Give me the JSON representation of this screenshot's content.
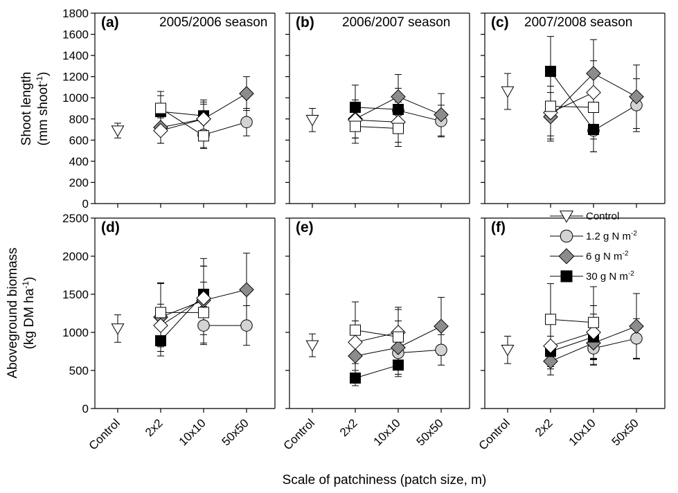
{
  "figure": {
    "xlabel": "Scale of patchiness (patch size, m)",
    "ylabel_top_line1": "Shoot length",
    "ylabel_top_line2": "(mm shoot",
    "ylabel_top_sup": "-1",
    "ylabel_bottom_line1": "Aboveground biomass",
    "ylabel_bottom_line2": "(kg DM ha",
    "ylabel_bottom_sup": "-1",
    "categories": [
      "Control",
      "2x2",
      "10x10",
      "50x50"
    ],
    "legend": [
      {
        "label": "Control",
        "sup": "",
        "marker": "triangle-down",
        "fill": "#ffffff"
      },
      {
        "label": "1.2 g N m",
        "sup": "-2",
        "marker": "circle",
        "fill": "#d3d3d3"
      },
      {
        "label": "6 g N m",
        "sup": "-2",
        "marker": "diamond",
        "fill": "#8c8c8c"
      },
      {
        "label": "30 g N m",
        "sup": "-2",
        "marker": "square",
        "fill": "#000000"
      }
    ],
    "colors": {
      "white_marker": "#ffffff",
      "light_grey": "#d3d3d3",
      "dark_grey": "#8c8c8c",
      "black": "#000000"
    }
  },
  "chart_data": [
    {
      "type": "scatter",
      "panel": "(a)",
      "title": "2005/2006 season",
      "row": "top",
      "ylim": [
        0,
        1800
      ],
      "yticks": [
        0,
        200,
        400,
        600,
        800,
        1000,
        1200,
        1400,
        1600,
        1800
      ],
      "categories": [
        "Control",
        "2x2",
        "10x10",
        "50x50"
      ],
      "series": [
        {
          "marker": "triangle-down",
          "fill": "#ffffff",
          "points": [
            {
              "x": "Control",
              "y": 690,
              "err": 70
            }
          ]
        },
        {
          "marker": "circle",
          "fill": "#d3d3d3",
          "points": [
            {
              "x": "10x10",
              "y": 650,
              "err": 120
            },
            {
              "x": "50x50",
              "y": 770,
              "err": 130
            }
          ]
        },
        {
          "marker": "diamond",
          "fill": "#8c8c8c",
          "points": [
            {
              "x": "2x2",
              "y": 720,
              "err": 150
            },
            {
              "x": "10x10",
              "y": 800,
              "err": 160
            },
            {
              "x": "50x50",
              "y": 1040,
              "err": 160
            }
          ]
        },
        {
          "marker": "square",
          "fill": "#000000",
          "points": [
            {
              "x": "2x2",
              "y": 870,
              "err": 150
            },
            {
              "x": "10x10",
              "y": 830,
              "err": 150
            }
          ]
        },
        {
          "marker": "diamond",
          "fill": "#ffffff",
          "points": [
            {
              "x": "2x2",
              "y": 690,
              "err": 120
            },
            {
              "x": "10x10",
              "y": 800,
              "err": 140
            }
          ]
        },
        {
          "marker": "square",
          "fill": "#ffffff",
          "points": [
            {
              "x": "2x2",
              "y": 900,
              "err": 160
            },
            {
              "x": "10x10",
              "y": 640,
              "err": 120
            }
          ]
        }
      ]
    },
    {
      "type": "scatter",
      "panel": "(b)",
      "title": "2006/2007 season",
      "row": "top",
      "ylim": [
        0,
        1800
      ],
      "categories": [
        "Control",
        "2x2",
        "10x10",
        "50x50"
      ],
      "series": [
        {
          "marker": "triangle-down",
          "fill": "#ffffff",
          "points": [
            {
              "x": "Control",
              "y": 790,
              "err": 110
            }
          ]
        },
        {
          "marker": "circle",
          "fill": "#d3d3d3",
          "points": [
            {
              "x": "10x10",
              "y": 880,
              "err": 150
            },
            {
              "x": "50x50",
              "y": 780,
              "err": 150
            }
          ]
        },
        {
          "marker": "diamond",
          "fill": "#8c8c8c",
          "points": [
            {
              "x": "2x2",
              "y": 800,
              "err": 180
            },
            {
              "x": "10x10",
              "y": 1010,
              "err": 210
            },
            {
              "x": "50x50",
              "y": 840,
              "err": 200
            }
          ]
        },
        {
          "marker": "square",
          "fill": "#000000",
          "points": [
            {
              "x": "2x2",
              "y": 910,
              "err": 210
            },
            {
              "x": "10x10",
              "y": 890,
              "err": 200
            }
          ]
        },
        {
          "marker": "diamond",
          "fill": "#ffffff",
          "points": [
            {
              "x": "2x2",
              "y": 790,
              "err": 170
            },
            {
              "x": "10x10",
              "y": 770,
              "err": 190
            }
          ]
        },
        {
          "marker": "square",
          "fill": "#ffffff",
          "points": [
            {
              "x": "2x2",
              "y": 730,
              "err": 160
            },
            {
              "x": "10x10",
              "y": 710,
              "err": 170
            }
          ]
        }
      ]
    },
    {
      "type": "scatter",
      "panel": "(c)",
      "title": "2007/2008 season",
      "row": "top",
      "ylim": [
        0,
        1800
      ],
      "categories": [
        "Control",
        "2x2",
        "10x10",
        "50x50"
      ],
      "series": [
        {
          "marker": "triangle-down",
          "fill": "#ffffff",
          "points": [
            {
              "x": "Control",
              "y": 1060,
              "err": 170
            }
          ]
        },
        {
          "marker": "circle",
          "fill": "#d3d3d3",
          "points": [
            {
              "x": "10x10",
              "y": 690,
              "err": 200
            },
            {
              "x": "50x50",
              "y": 930,
              "err": 250
            }
          ]
        },
        {
          "marker": "diamond",
          "fill": "#8c8c8c",
          "points": [
            {
              "x": "2x2",
              "y": 820,
              "err": 230
            },
            {
              "x": "10x10",
              "y": 1230,
              "err": 320
            },
            {
              "x": "50x50",
              "y": 1010,
              "err": 300
            }
          ]
        },
        {
          "marker": "square",
          "fill": "#000000",
          "points": [
            {
              "x": "2x2",
              "y": 1250,
              "err": 330
            },
            {
              "x": "10x10",
              "y": 700,
              "err": 210
            }
          ]
        },
        {
          "marker": "diamond",
          "fill": "#ffffff",
          "points": [
            {
              "x": "2x2",
              "y": 860,
              "err": 250
            },
            {
              "x": "10x10",
              "y": 1050,
              "err": 300
            }
          ]
        },
        {
          "marker": "square",
          "fill": "#ffffff",
          "points": [
            {
              "x": "2x2",
              "y": 920,
              "err": 280
            },
            {
              "x": "10x10",
              "y": 910,
              "err": 300
            }
          ]
        }
      ]
    },
    {
      "type": "scatter",
      "panel": "(d)",
      "title": "",
      "row": "bottom",
      "ylim": [
        0,
        2500
      ],
      "yticks": [
        0,
        500,
        1000,
        1500,
        2000,
        2500
      ],
      "categories": [
        "Control",
        "2x2",
        "10x10",
        "50x50"
      ],
      "series": [
        {
          "marker": "triangle-down",
          "fill": "#ffffff",
          "points": [
            {
              "x": "Control",
              "y": 1050,
              "err": 180
            }
          ]
        },
        {
          "marker": "circle",
          "fill": "#d3d3d3",
          "points": [
            {
              "x": "10x10",
              "y": 1090,
              "err": 250
            },
            {
              "x": "50x50",
              "y": 1090,
              "err": 260
            }
          ]
        },
        {
          "marker": "diamond",
          "fill": "#8c8c8c",
          "points": [
            {
              "x": "2x2",
              "y": 1200,
              "err": 450
            },
            {
              "x": "10x10",
              "y": 1420,
              "err": 450
            },
            {
              "x": "50x50",
              "y": 1560,
              "err": 480
            }
          ]
        },
        {
          "marker": "square",
          "fill": "#000000",
          "points": [
            {
              "x": "2x2",
              "y": 890,
              "err": 200
            },
            {
              "x": "10x10",
              "y": 1500,
              "err": 470
            }
          ]
        },
        {
          "marker": "diamond",
          "fill": "#ffffff",
          "points": [
            {
              "x": "2x2",
              "y": 1090,
              "err": 280
            },
            {
              "x": "10x10",
              "y": 1450,
              "err": 420
            }
          ]
        },
        {
          "marker": "square",
          "fill": "#ffffff",
          "points": [
            {
              "x": "2x2",
              "y": 1260,
              "err": 380
            },
            {
              "x": "10x10",
              "y": 1260,
              "err": 400
            }
          ]
        }
      ]
    },
    {
      "type": "scatter",
      "panel": "(e)",
      "title": "",
      "row": "bottom",
      "ylim": [
        0,
        2500
      ],
      "categories": [
        "Control",
        "2x2",
        "10x10",
        "50x50"
      ],
      "series": [
        {
          "marker": "triangle-down",
          "fill": "#ffffff",
          "points": [
            {
              "x": "Control",
              "y": 830,
              "err": 150
            }
          ]
        },
        {
          "marker": "circle",
          "fill": "#d3d3d3",
          "points": [
            {
              "x": "10x10",
              "y": 730,
              "err": 200
            },
            {
              "x": "50x50",
              "y": 770,
              "err": 200
            }
          ]
        },
        {
          "marker": "diamond",
          "fill": "#8c8c8c",
          "points": [
            {
              "x": "2x2",
              "y": 690,
              "err": 300
            },
            {
              "x": "10x10",
              "y": 800,
              "err": 350
            },
            {
              "x": "50x50",
              "y": 1080,
              "err": 380
            }
          ]
        },
        {
          "marker": "square",
          "fill": "#000000",
          "points": [
            {
              "x": "2x2",
              "y": 400,
              "err": 100
            },
            {
              "x": "10x10",
              "y": 570,
              "err": 150
            }
          ]
        },
        {
          "marker": "diamond",
          "fill": "#ffffff",
          "points": [
            {
              "x": "2x2",
              "y": 870,
              "err": 280
            },
            {
              "x": "10x10",
              "y": 1000,
              "err": 330
            }
          ]
        },
        {
          "marker": "square",
          "fill": "#ffffff",
          "points": [
            {
              "x": "2x2",
              "y": 1030,
              "err": 370
            },
            {
              "x": "10x10",
              "y": 940,
              "err": 360
            }
          ]
        }
      ]
    },
    {
      "type": "scatter",
      "panel": "(f)",
      "title": "",
      "row": "bottom",
      "ylim": [
        0,
        2500
      ],
      "categories": [
        "Control",
        "2x2",
        "10x10",
        "50x50"
      ],
      "series": [
        {
          "marker": "triangle-down",
          "fill": "#ffffff",
          "points": [
            {
              "x": "Control",
              "y": 770,
              "err": 180
            }
          ]
        },
        {
          "marker": "circle",
          "fill": "#d3d3d3",
          "points": [
            {
              "x": "10x10",
              "y": 790,
              "err": 220
            },
            {
              "x": "50x50",
              "y": 920,
              "err": 260
            }
          ]
        },
        {
          "marker": "diamond",
          "fill": "#8c8c8c",
          "points": [
            {
              "x": "2x2",
              "y": 620,
              "err": 180
            },
            {
              "x": "10x10",
              "y": 860,
              "err": 280
            },
            {
              "x": "50x50",
              "y": 1080,
              "err": 430
            }
          ]
        },
        {
          "marker": "square",
          "fill": "#000000",
          "points": [
            {
              "x": "2x2",
              "y": 750,
              "err": 200
            },
            {
              "x": "10x10",
              "y": 940,
              "err": 300
            }
          ]
        },
        {
          "marker": "diamond",
          "fill": "#ffffff",
          "points": [
            {
              "x": "2x2",
              "y": 820,
              "err": 300
            },
            {
              "x": "10x10",
              "y": 1000,
              "err": 350
            }
          ]
        },
        {
          "marker": "square",
          "fill": "#ffffff",
          "points": [
            {
              "x": "2x2",
              "y": 1170,
              "err": 470
            },
            {
              "x": "10x10",
              "y": 1130,
              "err": 470
            }
          ]
        }
      ]
    }
  ]
}
